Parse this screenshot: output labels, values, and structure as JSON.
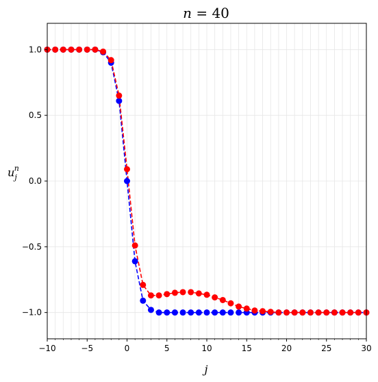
{
  "chart_data": {
    "type": "line",
    "title_prefix": "n",
    "title_eq": " = ",
    "title_value": "40",
    "xlabel": "j",
    "ylabel_base": "u",
    "ylabel_sub": "j",
    "ylabel_sup": "n",
    "xlim": [
      -10,
      30
    ],
    "ylim": [
      -1.2,
      1.2
    ],
    "xticks": [
      -10,
      -5,
      0,
      5,
      10,
      15,
      20,
      25,
      30
    ],
    "xtick_labels": [
      "−10",
      "−5",
      "0",
      "5",
      "10",
      "15",
      "20",
      "25",
      "30"
    ],
    "yticks": [
      1.0,
      0.5,
      0.0,
      -0.5,
      -1.0
    ],
    "ytick_labels": [
      "1.0",
      "0.5",
      "0.0",
      "−0.5",
      "−1.0"
    ],
    "grid": true,
    "x": [
      -10,
      -9,
      -8,
      -7,
      -6,
      -5,
      -4,
      -3,
      -2,
      -1,
      0,
      1,
      2,
      3,
      4,
      5,
      6,
      7,
      8,
      9,
      10,
      11,
      12,
      13,
      14,
      15,
      16,
      17,
      18,
      19,
      20,
      21,
      22,
      23,
      24,
      25,
      26,
      27,
      28,
      29,
      30
    ],
    "series": [
      {
        "color": "#0000ff",
        "line_style": "dashed",
        "marker": "circle",
        "values": [
          1,
          1,
          1,
          1,
          1,
          1,
          1,
          0.98,
          0.9,
          0.61,
          0.0,
          -0.61,
          -0.91,
          -0.98,
          -1,
          -1,
          -1,
          -1,
          -1,
          -1,
          -1,
          -1,
          -1,
          -1,
          -1,
          -1,
          -1,
          -1,
          -1,
          -1,
          -1,
          -1,
          -1,
          -1,
          -1,
          -1,
          -1,
          -1,
          -1,
          -1,
          -1
        ]
      },
      {
        "color": "#ff0000",
        "line_style": "dashed",
        "marker": "circle",
        "values": [
          1,
          1,
          1,
          1,
          1,
          1,
          1,
          0.985,
          0.92,
          0.65,
          0.09,
          -0.49,
          -0.79,
          -0.87,
          -0.87,
          -0.86,
          -0.85,
          -0.845,
          -0.845,
          -0.855,
          -0.865,
          -0.885,
          -0.905,
          -0.93,
          -0.955,
          -0.97,
          -0.985,
          -0.99,
          -0.995,
          -1,
          -1,
          -1,
          -1,
          -1,
          -1,
          -1,
          -1,
          -1,
          -1,
          -1,
          -1
        ]
      }
    ]
  }
}
